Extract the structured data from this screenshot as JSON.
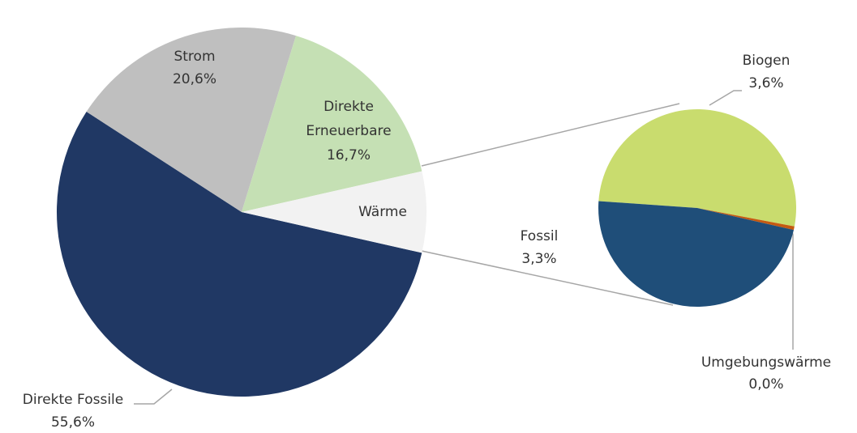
{
  "chart_data": {
    "type": "pie-of-pie",
    "pie": {
      "categories": [
        "Direkte Fossile",
        "Strom",
        "Direkte Erneuerbare",
        "Wärme"
      ],
      "values": [
        55.6,
        20.6,
        16.7,
        7.1
      ],
      "value_labels": [
        "55,6%",
        "20,6%",
        "16,7%",
        null
      ],
      "colors": [
        "#203864",
        "#bfbfbf",
        "#c5e0b4",
        "#f2f2f2"
      ]
    },
    "sub_pie": {
      "categories": [
        "Biogen",
        "Umgebungswärme",
        "Fossil"
      ],
      "values": [
        3.6,
        0.04,
        3.3
      ],
      "value_labels": [
        "3,6%",
        "0,0%",
        "3,3%"
      ],
      "colors": [
        "#c9dc6e",
        "#c55a11",
        "#1f4e79"
      ]
    }
  }
}
